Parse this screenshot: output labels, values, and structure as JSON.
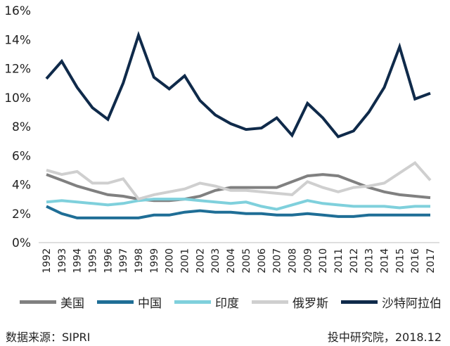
{
  "chart_data": {
    "type": "line",
    "x": [
      "1992",
      "1993",
      "1994",
      "1995",
      "1996",
      "1997",
      "1998",
      "1999",
      "2000",
      "2001",
      "2002",
      "2003",
      "2004",
      "2005",
      "2006",
      "2007",
      "2008",
      "2009",
      "2010",
      "2011",
      "2012",
      "2013",
      "2014",
      "2015",
      "2016",
      "2017"
    ],
    "ylim": [
      0,
      16
    ],
    "yticks": [
      "0%",
      "2%",
      "4%",
      "6%",
      "8%",
      "10%",
      "12%",
      "14%",
      "16%"
    ],
    "grid": false,
    "legend_position": "bottom",
    "series": [
      {
        "name": "美国",
        "color": "#808080",
        "values": [
          4.7,
          4.3,
          3.9,
          3.6,
          3.3,
          3.2,
          3.0,
          2.9,
          2.9,
          3.0,
          3.2,
          3.6,
          3.8,
          3.8,
          3.8,
          3.8,
          4.2,
          4.6,
          4.7,
          4.6,
          4.2,
          3.8,
          3.5,
          3.3,
          3.2,
          3.1
        ]
      },
      {
        "name": "中国",
        "color": "#1f6e96",
        "values": [
          2.5,
          2.0,
          1.7,
          1.7,
          1.7,
          1.7,
          1.7,
          1.9,
          1.9,
          2.1,
          2.2,
          2.1,
          2.1,
          2.0,
          2.0,
          1.9,
          1.9,
          2.0,
          1.9,
          1.8,
          1.8,
          1.9,
          1.9,
          1.9,
          1.9,
          1.9
        ]
      },
      {
        "name": "印度",
        "color": "#7fd0dc",
        "values": [
          2.8,
          2.9,
          2.8,
          2.7,
          2.6,
          2.7,
          2.9,
          3.0,
          3.0,
          3.0,
          2.9,
          2.8,
          2.7,
          2.8,
          2.5,
          2.3,
          2.6,
          2.9,
          2.7,
          2.6,
          2.5,
          2.5,
          2.5,
          2.4,
          2.5,
          2.5
        ]
      },
      {
        "name": "俄罗斯",
        "color": "#cfcfcf",
        "values": [
          5.0,
          4.7,
          4.9,
          4.1,
          4.1,
          4.4,
          3.0,
          3.3,
          3.5,
          3.7,
          4.1,
          3.9,
          3.6,
          3.6,
          3.5,
          3.4,
          3.3,
          4.2,
          3.8,
          3.5,
          3.8,
          3.9,
          4.1,
          4.8,
          5.5,
          4.3
        ]
      },
      {
        "name": "沙特阿拉伯",
        "color": "#0f2a4a",
        "values": [
          11.3,
          12.5,
          10.7,
          9.3,
          8.5,
          11.0,
          14.3,
          11.4,
          10.6,
          11.5,
          9.8,
          8.8,
          8.2,
          7.8,
          7.9,
          8.6,
          7.4,
          9.6,
          8.6,
          7.3,
          7.7,
          9.0,
          10.7,
          13.5,
          9.9,
          10.3
        ]
      }
    ]
  },
  "footer": {
    "source": "数据来源：SIPRI",
    "credit": "投中研究院，2018.12"
  }
}
